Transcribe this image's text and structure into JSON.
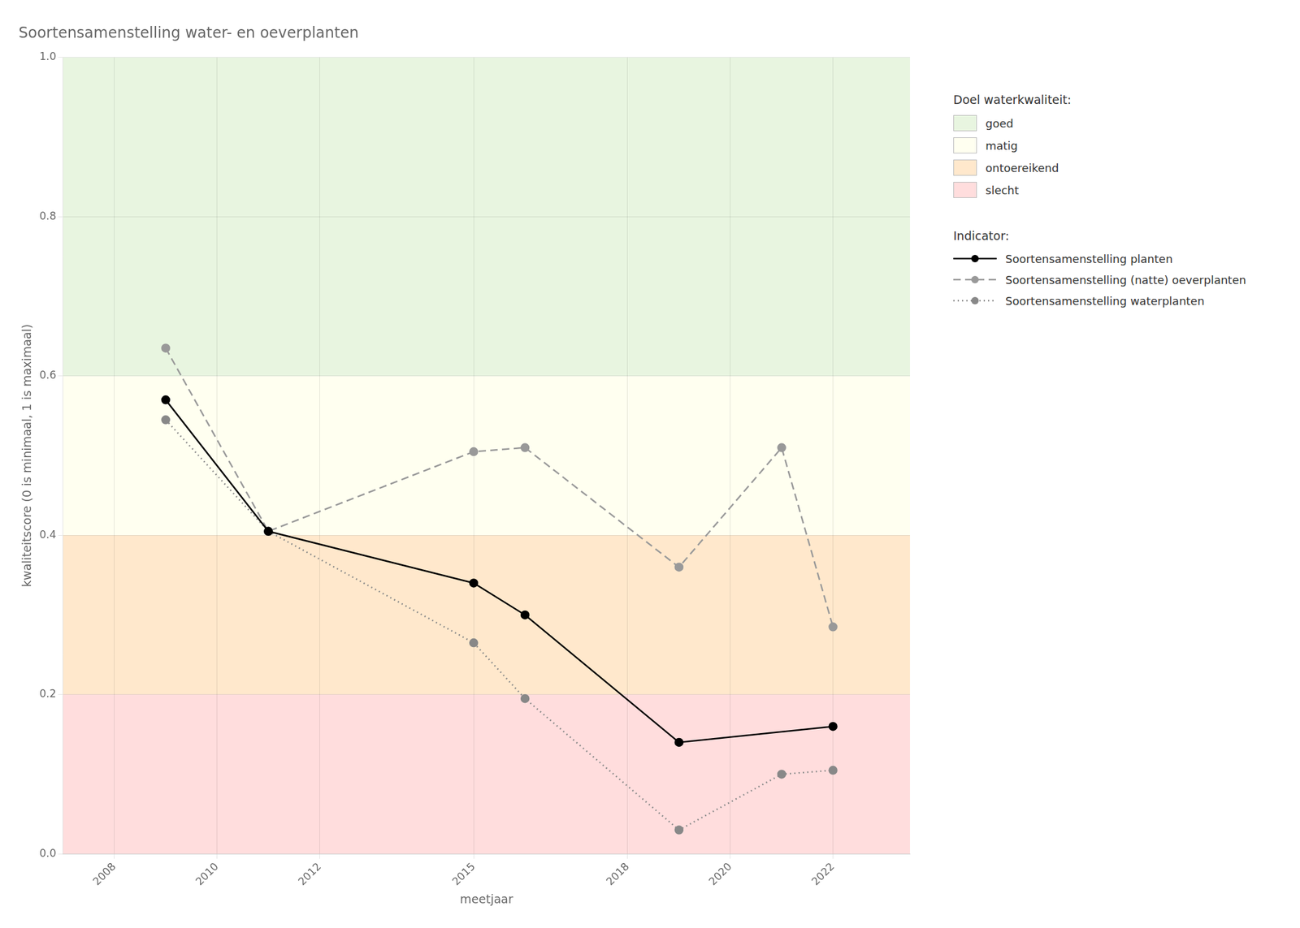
{
  "chart_data": {
    "type": "line",
    "title": "Soortensamenstelling water- en oeverplanten",
    "x_label": "meetjaar",
    "y_label": "kwaliteitscore (0 is minimaal, 1 is maximaal)",
    "xlim": [
      2007.0,
      2023.5
    ],
    "ylim": [
      0.0,
      1.0
    ],
    "xticks": [
      2008,
      2010,
      2012,
      2015,
      2018,
      2020,
      2022
    ],
    "yticks": [
      {
        "value": 0.0,
        "label": "0.0"
      },
      0.2,
      0.4,
      0.6,
      0.8,
      {
        "value": 1.0,
        "label": "1.0"
      }
    ],
    "grid": true,
    "legend": "right",
    "zone_legend_title": "Doel waterkwaliteit:",
    "series_legend_title": "Indicator:",
    "zones": [
      {
        "name": "goed",
        "ymin": 0.6,
        "ymax": 1.0,
        "color": "#E8F5E0"
      },
      {
        "name": "matig",
        "ymin": 0.4,
        "ymax": 0.6,
        "color": "#FFFFF0"
      },
      {
        "name": "ontoereikend",
        "ymin": 0.2,
        "ymax": 0.4,
        "color": "#FFE8CC"
      },
      {
        "name": "slecht",
        "ymin": 0.0,
        "ymax": 0.2,
        "color": "#FFDDDD"
      }
    ],
    "series": [
      {
        "name": "Soortensamenstelling planten",
        "color": "#000000",
        "line_style": "solid",
        "marker": "circle",
        "x": [
          2009,
          2011,
          2015,
          2016,
          2019,
          2022
        ],
        "values": [
          0.57,
          0.405,
          0.34,
          0.3,
          0.14,
          0.16
        ]
      },
      {
        "name": "Soortensamenstelling (natte) oeverplanten",
        "color": "#999999",
        "line_style": "dashed",
        "marker": "circle",
        "x": [
          2009,
          2011,
          2015,
          2016,
          2019,
          2021,
          2022
        ],
        "values": [
          0.635,
          0.405,
          0.505,
          0.51,
          0.36,
          0.51,
          0.285
        ]
      },
      {
        "name": "Soortensamenstelling waterplanten",
        "color": "#888888",
        "line_style": "dotted",
        "marker": "circle",
        "x": [
          2009,
          2011,
          2015,
          2016,
          2019,
          2021,
          2022
        ],
        "values": [
          0.545,
          0.405,
          0.265,
          0.195,
          0.03,
          0.1,
          0.105
        ]
      }
    ]
  }
}
